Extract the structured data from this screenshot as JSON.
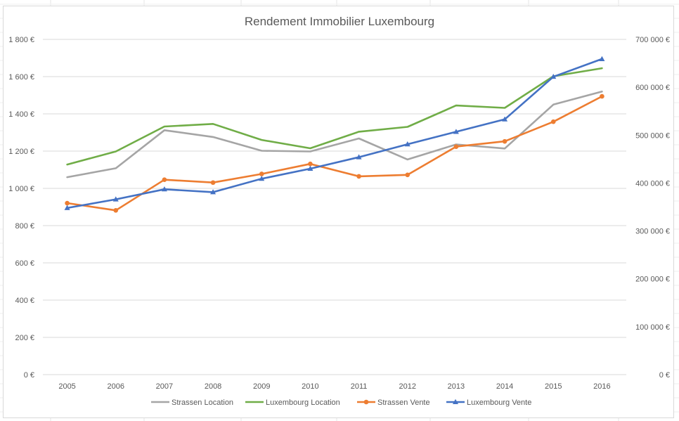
{
  "chart_data": {
    "type": "line",
    "title": "Rendement Immobilier Luxembourg",
    "categories": [
      "2005",
      "2006",
      "2007",
      "2008",
      "2009",
      "2010",
      "2011",
      "2012",
      "2013",
      "2014",
      "2015",
      "2016"
    ],
    "y_left": {
      "ylim": [
        0,
        1800
      ],
      "ticks": [
        0,
        200,
        400,
        600,
        800,
        1000,
        1200,
        1400,
        1600,
        1800
      ],
      "tick_labels": [
        "0 €",
        "200 €",
        "400 €",
        "600 €",
        "800 €",
        "1 000 €",
        "1 200 €",
        "1 400 €",
        "1 600 €",
        "1 800 €"
      ]
    },
    "y_right": {
      "ylim": [
        0,
        700000
      ],
      "ticks": [
        0,
        100000,
        200000,
        300000,
        400000,
        500000,
        600000,
        700000
      ],
      "tick_labels": [
        "0 €",
        "100 000 €",
        "200 000 €",
        "300 000 €",
        "400 000 €",
        "500 000 €",
        "600 000 €",
        "700 000 €"
      ]
    },
    "grid": true,
    "legend_position": "bottom",
    "series": [
      {
        "name": "Strassen Location",
        "axis": "left",
        "color": "#a5a5a5",
        "marker": "none",
        "values": [
          1060,
          1108,
          1312,
          1276,
          1202,
          1198,
          1268,
          1155,
          1236,
          1214,
          1450,
          1520
        ]
      },
      {
        "name": "Luxembourg Location",
        "axis": "left",
        "color": "#70ad47",
        "marker": "none",
        "values": [
          1128,
          1198,
          1332,
          1346,
          1260,
          1215,
          1304,
          1330,
          1445,
          1432,
          1602,
          1645
        ]
      },
      {
        "name": "Strassen Vente",
        "axis": "right",
        "color": "#ed7d31",
        "marker": "circle",
        "values": [
          358000,
          343000,
          407000,
          401000,
          419000,
          440000,
          414000,
          417000,
          476000,
          487000,
          528000,
          581000
        ]
      },
      {
        "name": "Luxembourg Vente",
        "axis": "right",
        "color": "#4472c4",
        "marker": "triangle",
        "values": [
          348000,
          366000,
          387000,
          381000,
          409000,
          430000,
          454000,
          481000,
          507000,
          533000,
          622000,
          659000
        ]
      }
    ]
  }
}
